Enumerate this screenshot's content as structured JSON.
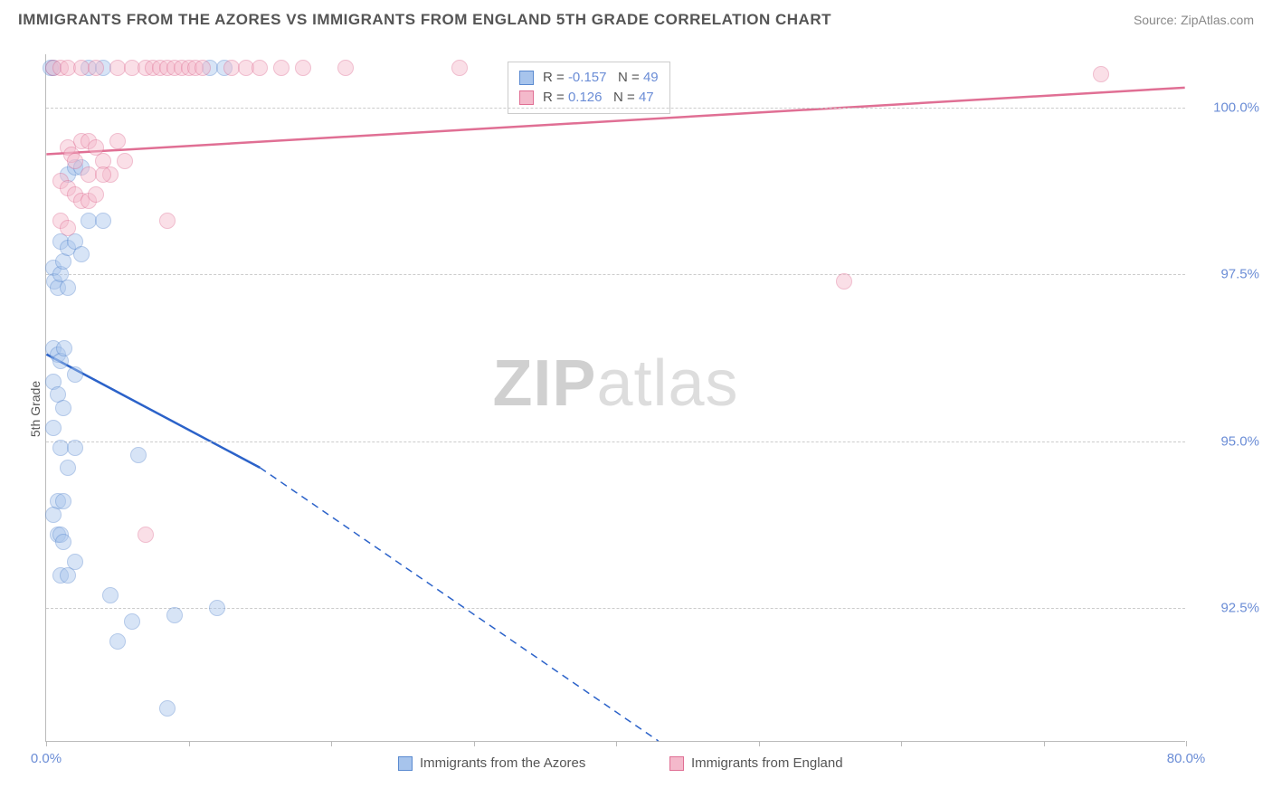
{
  "title": "IMMIGRANTS FROM THE AZORES VS IMMIGRANTS FROM ENGLAND 5TH GRADE CORRELATION CHART",
  "source_label": "Source: ",
  "source_name": "ZipAtlas.com",
  "y_axis_label": "5th Grade",
  "watermark_zip": "ZIP",
  "watermark_atlas": "atlas",
  "chart": {
    "type": "scatter",
    "xlim": [
      0,
      80
    ],
    "ylim": [
      90.5,
      100.8
    ],
    "x_ticks": [
      0,
      10,
      20,
      30,
      40,
      50,
      60,
      70,
      80
    ],
    "x_tick_labels_shown": {
      "0": "0.0%",
      "80": "80.0%"
    },
    "y_grid": [
      92.5,
      95.0,
      97.5,
      100.0
    ],
    "y_tick_labels": [
      "92.5%",
      "95.0%",
      "97.5%",
      "100.0%"
    ],
    "background_color": "#ffffff",
    "grid_color": "#cccccc",
    "axis_color": "#bbbbbb",
    "tick_label_color": "#6b8dd6",
    "marker_radius": 9,
    "marker_opacity": 0.45,
    "series": [
      {
        "name": "Immigrants from the Azores",
        "fill": "#a7c4ec",
        "stroke": "#5a8ad0",
        "trend_stroke": "#2b62c9",
        "trend_width": 2.5,
        "R": "-0.157",
        "N": "49",
        "trend": {
          "x1": 0,
          "y1": 96.3,
          "x2_solid": 15,
          "y2_solid": 94.6,
          "x2": 43,
          "y2": 90.5
        },
        "points": [
          [
            0.3,
            100.6
          ],
          [
            0.5,
            97.6
          ],
          [
            0.6,
            97.4
          ],
          [
            0.8,
            97.3
          ],
          [
            1.0,
            97.5
          ],
          [
            1.2,
            97.7
          ],
          [
            1.5,
            97.3
          ],
          [
            0.5,
            96.4
          ],
          [
            0.8,
            96.3
          ],
          [
            1.0,
            96.2
          ],
          [
            1.3,
            96.4
          ],
          [
            0.5,
            95.9
          ],
          [
            0.8,
            95.7
          ],
          [
            1.2,
            95.5
          ],
          [
            0.5,
            95.2
          ],
          [
            1.0,
            94.9
          ],
          [
            1.5,
            94.6
          ],
          [
            2.0,
            94.9
          ],
          [
            6.5,
            94.8
          ],
          [
            0.8,
            94.1
          ],
          [
            1.2,
            94.1
          ],
          [
            0.5,
            93.9
          ],
          [
            0.8,
            93.6
          ],
          [
            1.0,
            93.6
          ],
          [
            1.2,
            93.5
          ],
          [
            4.5,
            92.7
          ],
          [
            6.0,
            92.3
          ],
          [
            9.0,
            92.4
          ],
          [
            12.0,
            92.5
          ],
          [
            5.0,
            92.0
          ],
          [
            8.5,
            91.0
          ],
          [
            3.0,
            98.3
          ],
          [
            4.0,
            98.3
          ],
          [
            3.0,
            100.6
          ],
          [
            4.0,
            100.6
          ],
          [
            1.5,
            99.0
          ],
          [
            2.0,
            99.1
          ],
          [
            2.5,
            99.1
          ],
          [
            0.5,
            100.6
          ],
          [
            11.5,
            100.6
          ],
          [
            12.5,
            100.6
          ],
          [
            2.0,
            96.0
          ],
          [
            1.0,
            93.0
          ],
          [
            1.5,
            93.0
          ],
          [
            2.0,
            93.2
          ],
          [
            1.0,
            98.0
          ],
          [
            1.5,
            97.9
          ],
          [
            2.0,
            98.0
          ],
          [
            2.5,
            97.8
          ]
        ]
      },
      {
        "name": "Immigrants from England",
        "fill": "#f4b9cb",
        "stroke": "#e06f94",
        "trend_stroke": "#e06f94",
        "trend_width": 2.5,
        "R": "0.126",
        "N": "47",
        "trend": {
          "x1": 0,
          "y1": 99.3,
          "x2_solid": 80,
          "y2_solid": 100.3,
          "x2": 80,
          "y2": 100.3
        },
        "points": [
          [
            0.5,
            100.6
          ],
          [
            1.0,
            100.6
          ],
          [
            1.5,
            100.6
          ],
          [
            2.5,
            100.6
          ],
          [
            3.5,
            100.6
          ],
          [
            5.0,
            100.6
          ],
          [
            6.0,
            100.6
          ],
          [
            7.0,
            100.6
          ],
          [
            7.5,
            100.6
          ],
          [
            8.0,
            100.6
          ],
          [
            8.5,
            100.6
          ],
          [
            9.0,
            100.6
          ],
          [
            9.5,
            100.6
          ],
          [
            10.0,
            100.6
          ],
          [
            10.5,
            100.6
          ],
          [
            11.0,
            100.6
          ],
          [
            13.0,
            100.6
          ],
          [
            14.0,
            100.6
          ],
          [
            15.0,
            100.6
          ],
          [
            16.5,
            100.6
          ],
          [
            18.0,
            100.6
          ],
          [
            21.0,
            100.6
          ],
          [
            29.0,
            100.6
          ],
          [
            74.0,
            100.5
          ],
          [
            1.5,
            99.4
          ],
          [
            1.8,
            99.3
          ],
          [
            2.0,
            99.2
          ],
          [
            2.5,
            99.5
          ],
          [
            3.0,
            99.5
          ],
          [
            3.5,
            99.4
          ],
          [
            4.0,
            99.2
          ],
          [
            4.5,
            99.0
          ],
          [
            5.0,
            99.5
          ],
          [
            1.0,
            98.9
          ],
          [
            1.5,
            98.8
          ],
          [
            2.0,
            98.7
          ],
          [
            2.5,
            98.6
          ],
          [
            3.0,
            98.6
          ],
          [
            3.5,
            98.7
          ],
          [
            1.0,
            98.3
          ],
          [
            1.5,
            98.2
          ],
          [
            8.5,
            98.3
          ],
          [
            7.0,
            93.6
          ],
          [
            56.0,
            97.4
          ],
          [
            3.0,
            99.0
          ],
          [
            4.0,
            99.0
          ],
          [
            5.5,
            99.2
          ]
        ]
      }
    ]
  },
  "stats_legend": {
    "rows": [
      {
        "r_label": "R =",
        "r_val": "-0.157",
        "n_label": "N =",
        "n_val": "49"
      },
      {
        "r_label": "R =",
        "r_val": " 0.126",
        "n_label": "N =",
        "n_val": "47"
      }
    ]
  },
  "bottom_legend": [
    {
      "label": "Immigrants from the Azores"
    },
    {
      "label": "Immigrants from England"
    }
  ]
}
